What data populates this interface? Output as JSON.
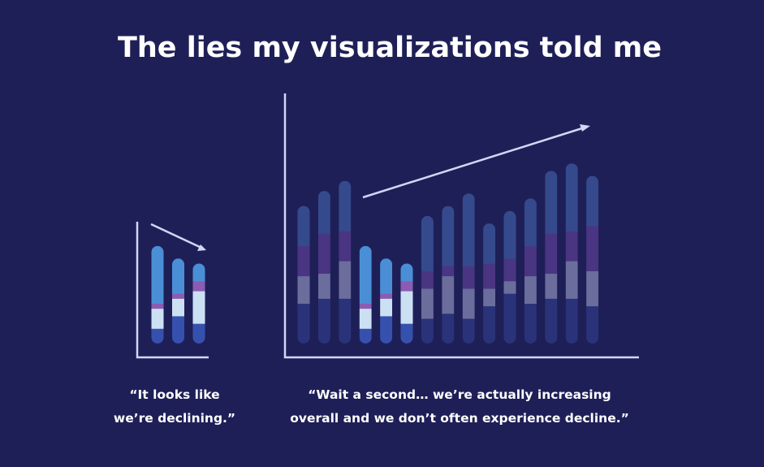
{
  "title": "The lies my visualizations told me",
  "chart_data": [
    {
      "type": "bar",
      "stacked": true,
      "ylim": [
        0,
        50
      ],
      "caption": [
        "“It looks like",
        "we’re declining.”"
      ],
      "series": [
        {
          "colors": [
            "#3651ad",
            "#3651ad",
            "#3651ad"
          ],
          "values": [
            6,
            11,
            8
          ]
        },
        {
          "colors": [
            "#cce0f4",
            "#cce0f4",
            "#cce0f4"
          ],
          "values": [
            8,
            7,
            13
          ]
        },
        {
          "colors": [
            "#8b5cb2",
            "#8b5cb2",
            "#8b5cb2"
          ],
          "values": [
            2,
            2,
            4
          ]
        },
        {
          "colors": [
            "#4a8fd6",
            "#4a8fd6",
            "#4a8fd6"
          ],
          "values": [
            23,
            14,
            7
          ]
        }
      ]
    },
    {
      "type": "bar",
      "stacked": true,
      "ylim": [
        0,
        100
      ],
      "caption": [
        "“Wait a second… we’re actually increasing",
        "overall and we don’t often experience decline.”"
      ],
      "series": [
        {
          "colors": [
            "#2a3379",
            "#2a3379",
            "#2a3379",
            "#3651ad",
            "#3651ad",
            "#3651ad",
            "#2a3379",
            "#2a3379",
            "#2a3379",
            "#2a3379",
            "#2a3379",
            "#2a3379",
            "#2a3379",
            "#2a3379",
            "#2a3379"
          ],
          "values": [
            16,
            18,
            18,
            6,
            11,
            8,
            10,
            12,
            10,
            15,
            20,
            16,
            18,
            18,
            15
          ]
        },
        {
          "colors": [
            "#6b6d9c",
            "#6b6d9c",
            "#6b6d9c",
            "#cce0f4",
            "#cce0f4",
            "#cce0f4",
            "#6b6d9c",
            "#6b6d9c",
            "#6b6d9c",
            "#6b6d9c",
            "#6b6d9c",
            "#6b6d9c",
            "#6b6d9c",
            "#6b6d9c",
            "#6b6d9c"
          ],
          "values": [
            11,
            10,
            15,
            8,
            7,
            13,
            12,
            15,
            12,
            7,
            5,
            11,
            10,
            15,
            14
          ]
        },
        {
          "colors": [
            "#4a3582",
            "#4a3582",
            "#4a3582",
            "#8b5cb2",
            "#8b5cb2",
            "#8b5cb2",
            "#4a3582",
            "#4a3582",
            "#4a3582",
            "#4a3582",
            "#4a3582",
            "#4a3582",
            "#4a3582",
            "#4a3582",
            "#4a3582"
          ],
          "values": [
            12,
            16,
            12,
            2,
            2,
            4,
            7,
            4,
            9,
            10,
            9,
            12,
            16,
            12,
            18
          ]
        },
        {
          "colors": [
            "#354a8c",
            "#354a8c",
            "#354a8c",
            "#4a8fd6",
            "#4a8fd6",
            "#4a8fd6",
            "#354a8c",
            "#354a8c",
            "#354a8c",
            "#354a8c",
            "#354a8c",
            "#354a8c",
            "#354a8c",
            "#354a8c",
            "#354a8c"
          ],
          "values": [
            16,
            17,
            20,
            23,
            14,
            7,
            22,
            24,
            29,
            16,
            19,
            19,
            25,
            27,
            20
          ]
        }
      ]
    }
  ]
}
